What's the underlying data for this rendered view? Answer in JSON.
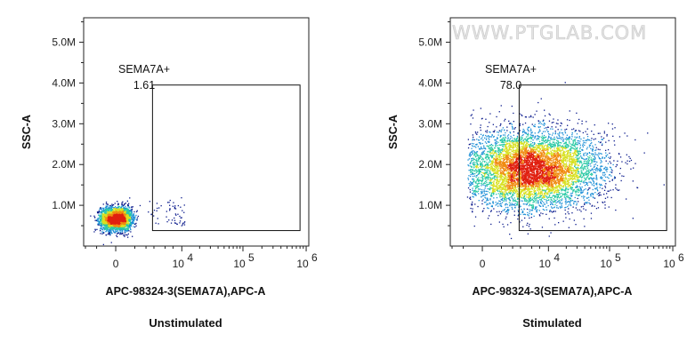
{
  "watermark": "WWW.PTGLAB.COM",
  "chart_data": [
    {
      "type": "scatter",
      "subtype": "flow-cytometry-density-dot-plot",
      "caption": "Unstimulated",
      "xlabel": "APC-98324-3(SEMA7A),APC-A",
      "ylabel": "SSC-A",
      "x_scale": "biexponential",
      "x_ticks": [
        {
          "value": 0,
          "label": "0"
        },
        {
          "value": 10000,
          "label": "10",
          "exp": "4"
        },
        {
          "value": 100000,
          "label": "10",
          "exp": "5"
        },
        {
          "value": 1000000,
          "label": "10",
          "exp": "6"
        }
      ],
      "y_ticks": [
        "1.0M",
        "2.0M",
        "3.0M",
        "4.0M",
        "5.0M"
      ],
      "y_tick_values": [
        1000000,
        2000000,
        3000000,
        4000000,
        5000000
      ],
      "ylim": [
        0,
        5600000
      ],
      "gate": {
        "name": "SEMA7A+",
        "percent": "1.61",
        "x_range": [
          2800,
          800000
        ],
        "y_range": [
          380000,
          3950000
        ]
      },
      "population": {
        "center_x": 0,
        "center_y": 680000,
        "events_in_gate_percent": 1.61
      },
      "color_scale": [
        "#0a1a8c",
        "#1c8fd6",
        "#29c9a4",
        "#d8e020",
        "#f08a10",
        "#e02010"
      ]
    },
    {
      "type": "scatter",
      "subtype": "flow-cytometry-density-dot-plot",
      "caption": "Stimulated",
      "xlabel": "APC-98324-3(SEMA7A),APC-A",
      "ylabel": "SSC-A",
      "x_scale": "biexponential",
      "x_ticks": [
        {
          "value": 0,
          "label": "0"
        },
        {
          "value": 10000,
          "label": "10",
          "exp": "4"
        },
        {
          "value": 100000,
          "label": "10",
          "exp": "5"
        },
        {
          "value": 1000000,
          "label": "10",
          "exp": "6"
        }
      ],
      "y_ticks": [
        "1.0M",
        "2.0M",
        "3.0M",
        "4.0M",
        "5.0M"
      ],
      "y_tick_values": [
        1000000,
        2000000,
        3000000,
        4000000,
        5000000
      ],
      "ylim": [
        0,
        5600000
      ],
      "gate": {
        "name": "SEMA7A+",
        "percent": "78.0",
        "x_range": [
          2800,
          800000
        ],
        "y_range": [
          380000,
          3950000
        ]
      },
      "population": {
        "center_x": 6000,
        "center_y": 1900000,
        "events_in_gate_percent": 78.0
      },
      "color_scale": [
        "#0a1a8c",
        "#1c8fd6",
        "#29c9a4",
        "#d8e020",
        "#f08a10",
        "#e02010"
      ]
    }
  ]
}
